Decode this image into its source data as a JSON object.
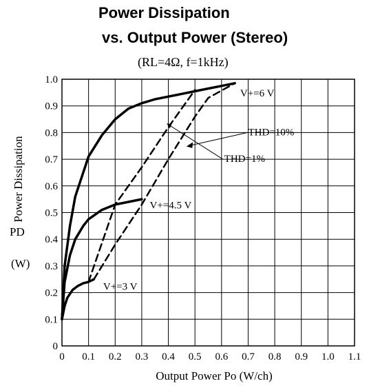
{
  "chart_data": {
    "type": "line",
    "title_line1": "Power Dissipation",
    "title_line2": "vs. Output Power (Stereo)",
    "subtitle": "(Rₗ=4Ω, f=1kHz)",
    "subtitle_display": "(RL=4Ω, f=1kHz)",
    "xlabel": "Output Power Po (W/ch)",
    "ylabel": "Power Dissipation",
    "ylabel_symbol": "PD",
    "ylabel_unit": "(W)",
    "xlim": [
      0,
      1.1
    ],
    "ylim": [
      0,
      1.0
    ],
    "x_ticks": [
      "0",
      "0.1",
      "0.2",
      "0.3",
      "0.4",
      "0.5",
      "0.6",
      "0.7",
      "0.8",
      "0.9",
      "1.0",
      "1.1"
    ],
    "y_ticks": [
      "0",
      "0.1",
      "0.2",
      "0.3",
      "0.4",
      "0.5",
      "0.6",
      "0.7",
      "0.8",
      "0.9",
      "1.0"
    ],
    "grid": true,
    "series": [
      {
        "name": "V+ = 6 V",
        "style": "solid",
        "points": [
          [
            0,
            0.1
          ],
          [
            0.01,
            0.3
          ],
          [
            0.03,
            0.45
          ],
          [
            0.05,
            0.56
          ],
          [
            0.08,
            0.65
          ],
          [
            0.1,
            0.71
          ],
          [
            0.15,
            0.79
          ],
          [
            0.2,
            0.85
          ],
          [
            0.25,
            0.89
          ],
          [
            0.3,
            0.91
          ],
          [
            0.35,
            0.925
          ],
          [
            0.4,
            0.935
          ],
          [
            0.45,
            0.945
          ],
          [
            0.5,
            0.955
          ],
          [
            0.55,
            0.965
          ],
          [
            0.6,
            0.975
          ],
          [
            0.65,
            0.985
          ]
        ]
      },
      {
        "name": "V+ = 4.5 V",
        "style": "solid",
        "points": [
          [
            0,
            0.1
          ],
          [
            0.01,
            0.24
          ],
          [
            0.03,
            0.34
          ],
          [
            0.05,
            0.4
          ],
          [
            0.08,
            0.45
          ],
          [
            0.1,
            0.475
          ],
          [
            0.15,
            0.51
          ],
          [
            0.2,
            0.53
          ],
          [
            0.25,
            0.54
          ],
          [
            0.3,
            0.55
          ]
        ]
      },
      {
        "name": "V+ = 3 V",
        "style": "solid",
        "points": [
          [
            0,
            0.1
          ],
          [
            0.01,
            0.15
          ],
          [
            0.02,
            0.18
          ],
          [
            0.04,
            0.21
          ],
          [
            0.06,
            0.225
          ],
          [
            0.08,
            0.235
          ],
          [
            0.1,
            0.24
          ],
          [
            0.12,
            0.25
          ]
        ]
      },
      {
        "name": "THD = 10%",
        "style": "dashed",
        "points": [
          [
            0.12,
            0.25
          ],
          [
            0.2,
            0.38
          ],
          [
            0.3,
            0.53
          ],
          [
            0.4,
            0.7
          ],
          [
            0.5,
            0.86
          ],
          [
            0.55,
            0.93
          ],
          [
            0.65,
            0.985
          ]
        ]
      },
      {
        "name": "THD = 1%",
        "style": "dashed",
        "points": [
          [
            0.1,
            0.24
          ],
          [
            0.2,
            0.53
          ],
          [
            0.3,
            0.67
          ],
          [
            0.4,
            0.82
          ],
          [
            0.5,
            0.96
          ]
        ]
      }
    ],
    "annotations": {
      "v6": "V+=6 V",
      "v45": "V+=4.5 V",
      "v3": "V+=3 V",
      "thd10": "THD=10%",
      "thd1": "THD=1%"
    }
  }
}
